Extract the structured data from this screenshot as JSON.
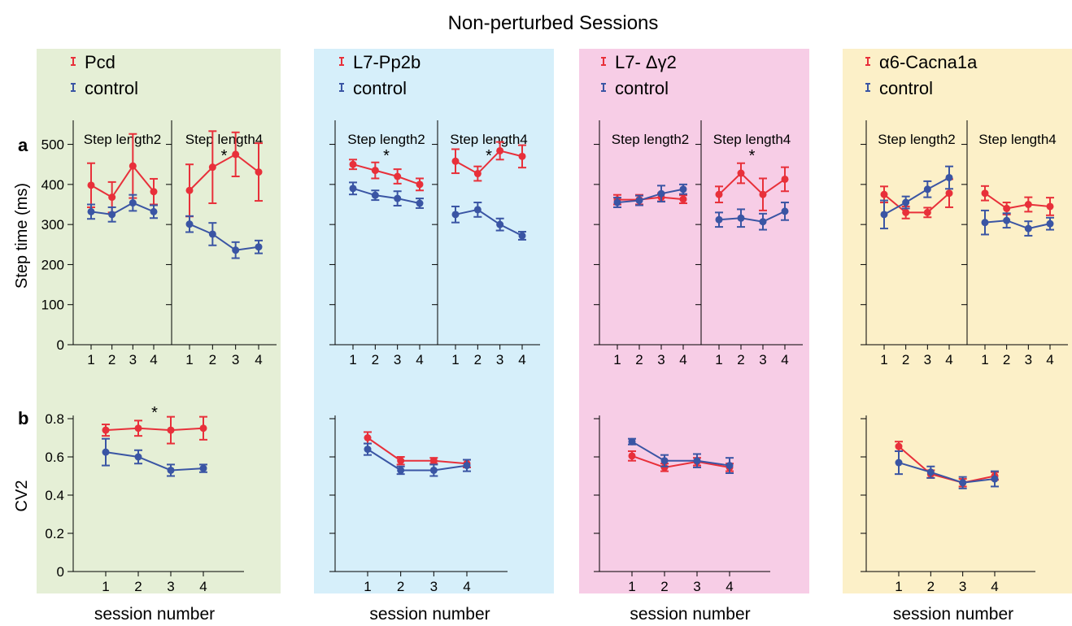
{
  "figure": {
    "title": "Non-perturbed Sessions",
    "panel_a_label": "a",
    "panel_b_label": "b",
    "ylabel_a": "Step time (ms)",
    "ylabel_b": "CV2",
    "xlabel": "session number",
    "yticks_a": [
      "0",
      "100",
      "200",
      "300",
      "400",
      "500"
    ],
    "yticks_b": [
      "0",
      "0.2",
      "0.4",
      "0.6",
      "0.8"
    ],
    "sub_titles": [
      "Step length2",
      "Step length4"
    ],
    "colors": {
      "mutant": "#e8303a",
      "control": "#3a55a4"
    }
  },
  "chart_data": [
    {
      "group": "Pcd",
      "background": "#e5efd6",
      "legend": [
        "Pcd",
        "control"
      ],
      "step_time": [
        {
          "subtitle": "Step length2",
          "type": "line",
          "x": [
            1,
            2,
            3,
            4
          ],
          "ylim": [
            0,
            560
          ],
          "series": [
            {
              "name": "Pcd",
              "values": [
                398,
                368,
                446,
                382
              ],
              "errors": [
                55,
                38,
                80,
                32
              ]
            },
            {
              "name": "control",
              "values": [
                332,
                325,
                354,
                332
              ],
              "errors": [
                18,
                18,
                20,
                16
              ]
            }
          ],
          "annotations": []
        },
        {
          "subtitle": "Step length4",
          "type": "line",
          "x": [
            1,
            2,
            3,
            4
          ],
          "ylim": [
            0,
            560
          ],
          "series": [
            {
              "name": "Pcd",
              "values": [
                385,
                443,
                475,
                431
              ],
              "errors": [
                65,
                90,
                55,
                72
              ]
            },
            {
              "name": "control",
              "values": [
                301,
                276,
                236,
                244
              ],
              "errors": [
                20,
                28,
                20,
                16
              ]
            }
          ],
          "annotations": [
            {
              "text": "*",
              "x": 2.5
            }
          ]
        }
      ],
      "cv2": {
        "type": "line",
        "x": [
          1,
          2,
          3,
          4
        ],
        "ylim": [
          0,
          0.8
        ],
        "series": [
          {
            "name": "Pcd",
            "values": [
              0.74,
              0.75,
              0.74,
              0.75
            ],
            "errors": [
              0.03,
              0.04,
              0.07,
              0.06
            ]
          },
          {
            "name": "control",
            "values": [
              0.625,
              0.6,
              0.53,
              0.54
            ],
            "errors": [
              0.07,
              0.035,
              0.03,
              0.02
            ]
          }
        ],
        "annotations": [
          {
            "text": "*",
            "x": 2.5
          }
        ]
      }
    },
    {
      "group": "L7-Pp2b",
      "background": "#d6effa",
      "legend": [
        "L7-Pp2b",
        "control"
      ],
      "step_time": [
        {
          "subtitle": "Step length2",
          "type": "line",
          "x": [
            1,
            2,
            3,
            4
          ],
          "ylim": [
            0,
            560
          ],
          "series": [
            {
              "name": "L7-Pp2b",
              "values": [
                450,
                435,
                420,
                400
              ],
              "errors": [
                12,
                20,
                18,
                15
              ]
            },
            {
              "name": "control",
              "values": [
                390,
                373,
                365,
                353
              ],
              "errors": [
                15,
                12,
                18,
                12
              ]
            }
          ],
          "annotations": [
            {
              "text": "*",
              "x": 2.5
            }
          ]
        },
        {
          "subtitle": "Step length4",
          "type": "line",
          "x": [
            1,
            2,
            3,
            4
          ],
          "ylim": [
            0,
            560
          ],
          "series": [
            {
              "name": "L7-Pp2b",
              "values": [
                458,
                427,
                484,
                470
              ],
              "errors": [
                30,
                18,
                22,
                28
              ]
            },
            {
              "name": "control",
              "values": [
                325,
                337,
                300,
                272
              ],
              "errors": [
                20,
                18,
                15,
                10
              ]
            }
          ],
          "annotations": [
            {
              "text": "*",
              "x": 2.5
            }
          ]
        }
      ],
      "cv2": {
        "type": "line",
        "x": [
          1,
          2,
          3,
          4
        ],
        "ylim": [
          0,
          0.8
        ],
        "series": [
          {
            "name": "L7-Pp2b",
            "values": [
              0.7,
              0.58,
              0.58,
              0.565
            ],
            "errors": [
              0.03,
              0.02,
              0.015,
              0.02
            ]
          },
          {
            "name": "control",
            "values": [
              0.64,
              0.53,
              0.53,
              0.555
            ],
            "errors": [
              0.03,
              0.02,
              0.03,
              0.03
            ]
          }
        ],
        "annotations": []
      }
    },
    {
      "group": "L7-Δγ2",
      "background": "#f7cde6",
      "legend": [
        "L7- Δγ2",
        "control"
      ],
      "step_time": [
        {
          "subtitle": "Step length2",
          "type": "line",
          "x": [
            1,
            2,
            3,
            4
          ],
          "ylim": [
            0,
            560
          ],
          "series": [
            {
              "name": "L7- Δγ2",
              "values": [
                362,
                362,
                368,
                363
              ],
              "errors": [
                12,
                12,
                10,
                10
              ]
            },
            {
              "name": "control",
              "values": [
                355,
                360,
                377,
                388
              ],
              "errors": [
                12,
                12,
                20,
                12
              ]
            }
          ],
          "annotations": []
        },
        {
          "subtitle": "Step length4",
          "type": "line",
          "x": [
            1,
            2,
            3,
            4
          ],
          "ylim": [
            0,
            560
          ],
          "series": [
            {
              "name": "L7- Δγ2",
              "values": [
                375,
                428,
                375,
                413
              ],
              "errors": [
                20,
                25,
                40,
                30
              ]
            },
            {
              "name": "control",
              "values": [
                312,
                316,
                307,
                333
              ],
              "errors": [
                18,
                22,
                20,
                22
              ]
            }
          ],
          "annotations": [
            {
              "text": "*",
              "x": 2.5
            }
          ]
        }
      ],
      "cv2": {
        "type": "line",
        "x": [
          1,
          2,
          3,
          4
        ],
        "ylim": [
          0,
          0.8
        ],
        "series": [
          {
            "name": "L7- Δγ2",
            "values": [
              0.605,
              0.545,
              0.575,
              0.545
            ],
            "errors": [
              0.025,
              0.02,
              0.02,
              0.02
            ]
          },
          {
            "name": "control",
            "values": [
              0.68,
              0.58,
              0.58,
              0.555
            ],
            "errors": [
              0.015,
              0.03,
              0.035,
              0.04
            ]
          }
        ],
        "annotations": []
      }
    },
    {
      "group": "α6-Cacna1a",
      "background": "#fcf0c8",
      "legend": [
        "α6-Cacna1a",
        "control"
      ],
      "step_time": [
        {
          "subtitle": "Step length2",
          "type": "line",
          "x": [
            1,
            2,
            3,
            4
          ],
          "ylim": [
            0,
            560
          ],
          "series": [
            {
              "name": "α6-Cacna1a",
              "values": [
                375,
                330,
                330,
                378
              ],
              "errors": [
                20,
                15,
                12,
                35
              ]
            },
            {
              "name": "control",
              "values": [
                325,
                355,
                388,
                417
              ],
              "errors": [
                35,
                15,
                20,
                28
              ]
            }
          ],
          "annotations": []
        },
        {
          "subtitle": "Step length4",
          "type": "line",
          "x": [
            1,
            2,
            3,
            4
          ],
          "ylim": [
            0,
            560
          ],
          "series": [
            {
              "name": "α6-Cacna1a",
              "values": [
                378,
                340,
                350,
                345
              ],
              "errors": [
                18,
                15,
                18,
                22
              ]
            },
            {
              "name": "control",
              "values": [
                305,
                310,
                290,
                302
              ],
              "errors": [
                30,
                18,
                18,
                15
              ]
            }
          ],
          "annotations": []
        }
      ],
      "cv2": {
        "type": "line",
        "x": [
          1,
          2,
          3,
          4
        ],
        "ylim": [
          0,
          0.8
        ],
        "series": [
          {
            "name": "α6-Cacna1a",
            "values": [
              0.655,
              0.51,
              0.465,
              0.5
            ],
            "errors": [
              0.025,
              0.02,
              0.02,
              0.02
            ]
          },
          {
            "name": "control",
            "values": [
              0.57,
              0.52,
              0.465,
              0.485
            ],
            "errors": [
              0.06,
              0.03,
              0.03,
              0.04
            ]
          }
        ],
        "annotations": []
      }
    }
  ]
}
